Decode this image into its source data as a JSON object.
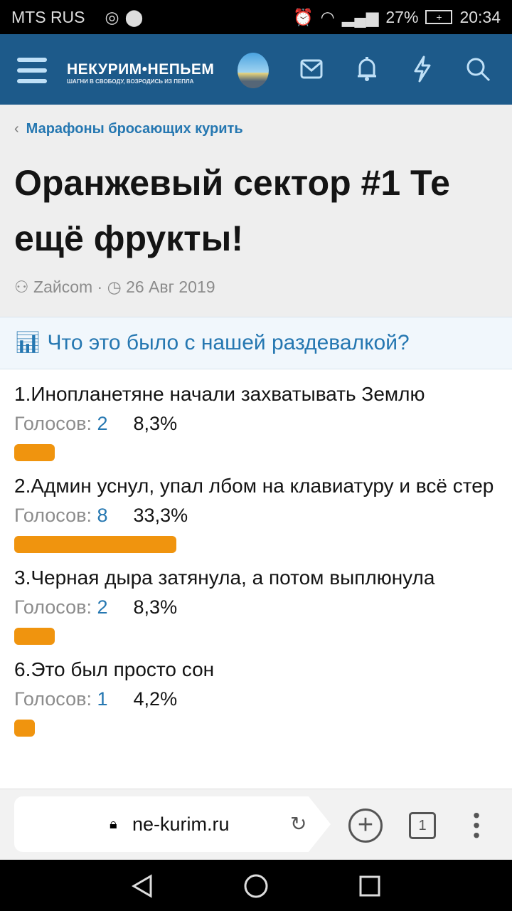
{
  "status_bar": {
    "carrier": "MTS RUS",
    "battery": "27%",
    "time": "20:34"
  },
  "header": {
    "logo_title": "НЕКУРИМ•НЕПЬЕМ",
    "logo_tagline": "ШАГНИ В СВОБОДУ, ВОЗРОДИСЬ ИЗ ПЕПЛА"
  },
  "breadcrumb": "Марафоны бросающих курить",
  "title": "Оранжевый сектор #1 Те ещё фрукты!",
  "meta": {
    "author": "Zайcom",
    "date": "26 Авг 2019"
  },
  "poll": {
    "question": "Что это было с нашей раздевалкой?",
    "votes_label": "Голосов:",
    "options": [
      {
        "text": "1.Инопланетяне начали захватывать Землю",
        "votes": "2",
        "percent": "8,3%",
        "fraction": 0.083
      },
      {
        "text": "2.Админ уснул, упал лбом на клавиатуру и всё стер",
        "votes": "8",
        "percent": "33,3%",
        "fraction": 0.333
      },
      {
        "text": "3.Черная дыра затянула, а потом выплюнула",
        "votes": "2",
        "percent": "8,3%",
        "fraction": 0.083
      },
      {
        "text": "6.Это был просто сон",
        "votes": "1",
        "percent": "4,2%",
        "fraction": 0.042
      }
    ]
  },
  "browser": {
    "url": "ne-kurim.ru",
    "tab_count": "1"
  },
  "colors": {
    "header": "#1d5a8a",
    "accent": "#2577b1",
    "bar": "#f0940e"
  }
}
